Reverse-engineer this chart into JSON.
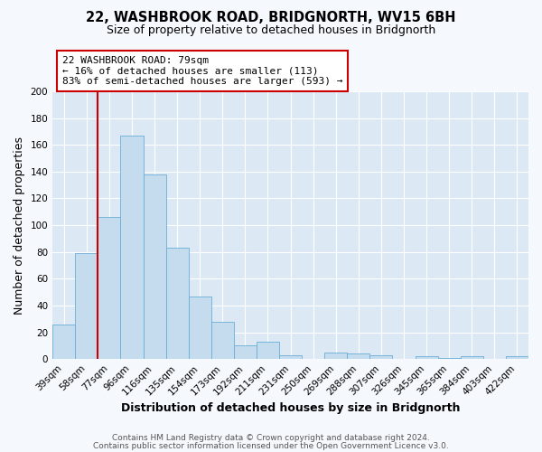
{
  "title": "22, WASHBROOK ROAD, BRIDGNORTH, WV15 6BH",
  "subtitle": "Size of property relative to detached houses in Bridgnorth",
  "xlabel": "Distribution of detached houses by size in Bridgnorth",
  "ylabel": "Number of detached properties",
  "bin_labels": [
    "39sqm",
    "58sqm",
    "77sqm",
    "96sqm",
    "116sqm",
    "135sqm",
    "154sqm",
    "173sqm",
    "192sqm",
    "211sqm",
    "231sqm",
    "250sqm",
    "269sqm",
    "288sqm",
    "307sqm",
    "326sqm",
    "345sqm",
    "365sqm",
    "384sqm",
    "403sqm",
    "422sqm"
  ],
  "bar_heights": [
    26,
    79,
    106,
    167,
    138,
    83,
    47,
    28,
    10,
    13,
    3,
    0,
    5,
    4,
    3,
    0,
    2,
    1,
    2,
    0,
    2
  ],
  "bar_color": "#c5dcee",
  "bar_edge_color": "#6aaed6",
  "ylim": [
    0,
    200
  ],
  "yticks": [
    0,
    20,
    40,
    60,
    80,
    100,
    120,
    140,
    160,
    180,
    200
  ],
  "vline_color": "#cc0000",
  "vline_index": 2,
  "annotation_text": "22 WASHBROOK ROAD: 79sqm\n← 16% of detached houses are smaller (113)\n83% of semi-detached houses are larger (593) →",
  "annotation_box_facecolor": "#ffffff",
  "annotation_box_edgecolor": "#cc0000",
  "footer_line1": "Contains HM Land Registry data © Crown copyright and database right 2024.",
  "footer_line2": "Contains public sector information licensed under the Open Government Licence v3.0.",
  "plot_bg_color": "#dce9f5",
  "fig_bg_color": "#f5f8fd",
  "grid_color": "#ffffff",
  "title_fontsize": 10.5,
  "subtitle_fontsize": 9,
  "axis_label_fontsize": 9,
  "tick_fontsize": 7.5,
  "footer_fontsize": 6.5,
  "annotation_fontsize": 8
}
